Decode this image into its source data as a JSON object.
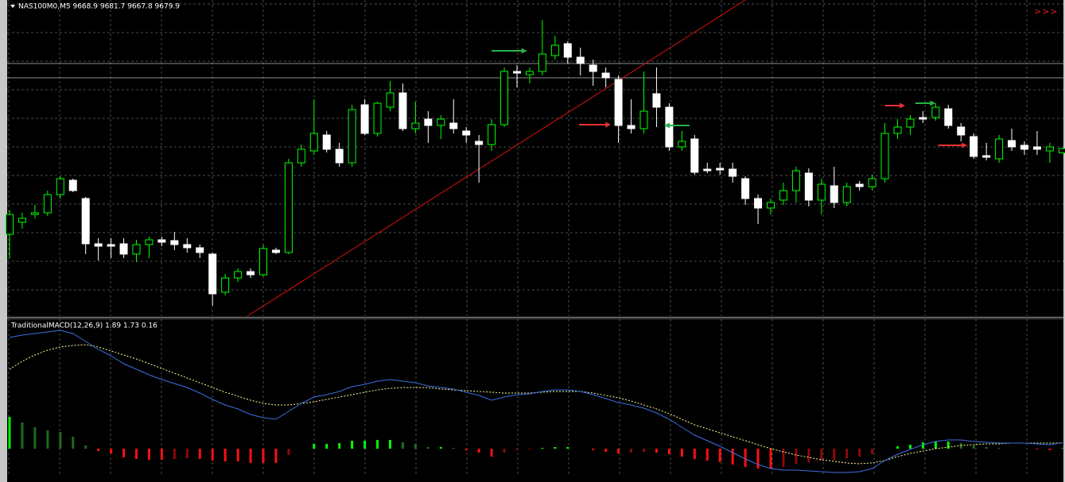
{
  "chart_data": [
    {
      "type": "candlestick",
      "title": "NAS100M0,M5  9668.9 9681.7 9667.8 9679.9",
      "marker_text": ">>>",
      "ylim": [
        9258,
        10054
      ],
      "open": [
        9464,
        9494,
        9514,
        9518,
        9564,
        9600,
        9554,
        9440,
        9438,
        9440,
        9414,
        9438,
        9450,
        9448,
        9438,
        9430,
        9414,
        9318,
        9354,
        9370,
        9362,
        9424,
        9418,
        9644,
        9674,
        9714,
        9678,
        9644,
        9790,
        9718,
        9784,
        9820,
        9730,
        9754,
        9738,
        9744,
        9724,
        9698,
        9690,
        9740,
        9874,
        9866,
        9874,
        9914,
        9944,
        9910,
        9890,
        9870,
        9854,
        9738,
        9730,
        9818,
        9784,
        9684,
        9704,
        9628,
        9630,
        9628,
        9604,
        9554,
        9530,
        9550,
        9574,
        9618,
        9550,
        9586,
        9544,
        9590,
        9584,
        9604,
        9718,
        9734,
        9758,
        9758,
        9780,
        9734,
        9710,
        9662,
        9654,
        9700,
        9688,
        9684,
        9674,
        9668.9
      ],
      "high": [
        9524,
        9518,
        9538,
        9574,
        9610,
        9604,
        9558,
        9454,
        9454,
        9454,
        9450,
        9458,
        9458,
        9470,
        9454,
        9438,
        9418,
        9364,
        9378,
        9378,
        9438,
        9430,
        9654,
        9690,
        9804,
        9724,
        9694,
        9790,
        9804,
        9798,
        9850,
        9844,
        9798,
        9774,
        9764,
        9804,
        9734,
        9714,
        9754,
        9884,
        9890,
        9884,
        10004,
        9964,
        9950,
        9934,
        9904,
        9884,
        9864,
        9804,
        9874,
        9884,
        9794,
        9724,
        9714,
        9644,
        9644,
        9644,
        9610,
        9564,
        9554,
        9594,
        9634,
        9630,
        9604,
        9634,
        9594,
        9598,
        9614,
        9744,
        9754,
        9764,
        9774,
        9794,
        9790,
        9744,
        9718,
        9694,
        9714,
        9730,
        9698,
        9724,
        9694,
        9681.7
      ],
      "low": [
        9404,
        9478,
        9504,
        9510,
        9554,
        9570,
        9414,
        9398,
        9404,
        9404,
        9394,
        9404,
        9434,
        9424,
        9418,
        9404,
        9284,
        9310,
        9344,
        9354,
        9358,
        9414,
        9414,
        9634,
        9664,
        9670,
        9634,
        9634,
        9714,
        9710,
        9774,
        9724,
        9718,
        9694,
        9704,
        9718,
        9694,
        9594,
        9674,
        9734,
        9834,
        9844,
        9864,
        9904,
        9894,
        9864,
        9838,
        9834,
        9694,
        9718,
        9718,
        9734,
        9674,
        9674,
        9614,
        9618,
        9614,
        9594,
        9538,
        9490,
        9514,
        9538,
        9544,
        9534,
        9514,
        9530,
        9534,
        9574,
        9574,
        9594,
        9704,
        9714,
        9744,
        9750,
        9730,
        9698,
        9654,
        9650,
        9644,
        9674,
        9664,
        9664,
        9644,
        9667.8
      ],
      "close": [
        9514,
        9504,
        9518,
        9564,
        9604,
        9574,
        9440,
        9434,
        9434,
        9414,
        9438,
        9450,
        9444,
        9438,
        9430,
        9418,
        9314,
        9354,
        9370,
        9362,
        9428,
        9418,
        9644,
        9678,
        9718,
        9678,
        9644,
        9778,
        9718,
        9794,
        9820,
        9730,
        9744,
        9738,
        9754,
        9730,
        9714,
        9690,
        9740,
        9874,
        9870,
        9874,
        9918,
        9940,
        9910,
        9894,
        9874,
        9858,
        9738,
        9730,
        9774,
        9784,
        9684,
        9698,
        9620,
        9624,
        9626,
        9610,
        9554,
        9530,
        9544,
        9574,
        9624,
        9550,
        9590,
        9544,
        9584,
        9584,
        9604,
        9718,
        9734,
        9754,
        9754,
        9784,
        9738,
        9714,
        9660,
        9658,
        9704,
        9684,
        9678,
        9678,
        9684,
        9679.9
      ],
      "bull_color": "#00ff00",
      "bear_color": "#ffffff",
      "hlines": [
        9894,
        9858
      ],
      "hline_color": "#8c8c8c",
      "trendline": {
        "from": [
          18.75,
          9258
        ],
        "to": [
          58,
          10054
        ],
        "color": "#e01010"
      },
      "arrows": [
        {
          "x": [
            38,
            40.8
          ],
          "price": 9926,
          "color": "#27b24a"
        },
        {
          "x": [
            53.6,
            51.6
          ],
          "price": 9738,
          "color": "#27b24a"
        },
        {
          "x": [
            71.4,
            73
          ],
          "price": 9794,
          "color": "#27b24a"
        },
        {
          "x": [
            44.9,
            47.4
          ],
          "price": 9740,
          "color": "#e83030"
        },
        {
          "x": [
            69,
            70.6
          ],
          "price": 9788,
          "color": "#e83030"
        },
        {
          "x": [
            73.2,
            75.5
          ],
          "price": 9688,
          "color": "#e83030"
        }
      ]
    },
    {
      "type": "macd",
      "title": "TraditionalMACD(12,26,9) 1.89 1.73 0.16",
      "ylim": [
        -8,
        40.75
      ],
      "macd": [
        35,
        35.75,
        36.25,
        36.75,
        37.25,
        36.25,
        33.75,
        31.25,
        29.25,
        26.75,
        25,
        23.25,
        21.75,
        20.5,
        19.25,
        17.5,
        15.5,
        13.75,
        12.5,
        10.75,
        9.75,
        9.25,
        11.75,
        14.25,
        16.25,
        17,
        18,
        19.5,
        20.25,
        21.25,
        21.75,
        21.25,
        20.75,
        19.75,
        19.25,
        18.75,
        17.75,
        16.75,
        15.25,
        16.25,
        17,
        17.25,
        18,
        18.5,
        18.5,
        18,
        17,
        15.75,
        14.5,
        13.75,
        12.75,
        11.25,
        9.25,
        6.75,
        4.25,
        2.5,
        0.75,
        -1.25,
        -3.25,
        -5,
        -6.25,
        -6.75,
        -6.75,
        -7,
        -7.25,
        -7.5,
        -7.5,
        -7.25,
        -6.25,
        -3.75,
        -1.75,
        -0.25,
        1.25,
        2.25,
        2.75,
        2.75,
        2.25,
        2,
        1.75,
        1.75,
        1.75,
        1.5,
        1.25,
        1.89
      ],
      "signal": [
        25,
        27.5,
        29.5,
        31,
        32,
        32.5,
        32.75,
        32,
        30.75,
        29.5,
        28.25,
        26.75,
        25.25,
        23.75,
        22.25,
        20.75,
        19.25,
        17.75,
        16.5,
        15.25,
        14.25,
        13.75,
        13.75,
        14.25,
        14.75,
        15.5,
        16.25,
        17,
        17.75,
        18.5,
        19,
        19.25,
        19.25,
        19.25,
        18.75,
        18.5,
        18.25,
        18,
        17.75,
        17.5,
        17.5,
        17.5,
        17.75,
        18,
        18,
        18,
        17.5,
        16.75,
        16,
        15,
        13.75,
        12.5,
        11,
        9.25,
        7.5,
        6.25,
        5,
        3.75,
        2.5,
        1.25,
        0,
        -1,
        -2,
        -2.75,
        -3.5,
        -4,
        -4.5,
        -4.75,
        -4.5,
        -3.75,
        -2.5,
        -1.5,
        -0.75,
        0,
        0.5,
        1,
        1.25,
        1.5,
        1.5,
        1.75,
        1.75,
        1.75,
        1.75,
        1.73
      ],
      "histogram": [
        10,
        8.25,
        6.75,
        5.75,
        5.25,
        3.75,
        1,
        -0.75,
        -1.5,
        -2.75,
        -3.25,
        -3.5,
        -3.5,
        -3.25,
        -3,
        -3.25,
        -3.75,
        -4,
        -4,
        -4.5,
        -4.5,
        -4.5,
        -2,
        0,
        1.5,
        1.5,
        1.75,
        2.5,
        2.5,
        2.75,
        2.75,
        2,
        1.5,
        0.5,
        0.5,
        0.25,
        -0.5,
        -1.25,
        -2.5,
        -1.25,
        -0.5,
        -0.25,
        0.25,
        0.5,
        0.5,
        0,
        -0.5,
        -1,
        -1.5,
        -1.25,
        -1,
        -1.25,
        -1.75,
        -2.5,
        -3.25,
        -3.75,
        -4.25,
        -5,
        -5.75,
        -6.25,
        -6.25,
        -5.75,
        -4.75,
        -4.25,
        -3.75,
        -3.5,
        -3,
        -2.5,
        -1.75,
        0,
        0.75,
        1.25,
        2,
        2.25,
        2.25,
        1.75,
        1,
        0.5,
        0.25,
        0,
        0,
        -0.25,
        -0.5,
        0.16
      ],
      "macd_color": "#3c6fe0",
      "signal_color": "#ffff99",
      "hist_colors": {
        "rising_positive": "#00ff00",
        "falling_positive": "#1d6b1d",
        "falling_negative": "#ff1010",
        "rising_negative": "#8b0a0a"
      }
    }
  ]
}
